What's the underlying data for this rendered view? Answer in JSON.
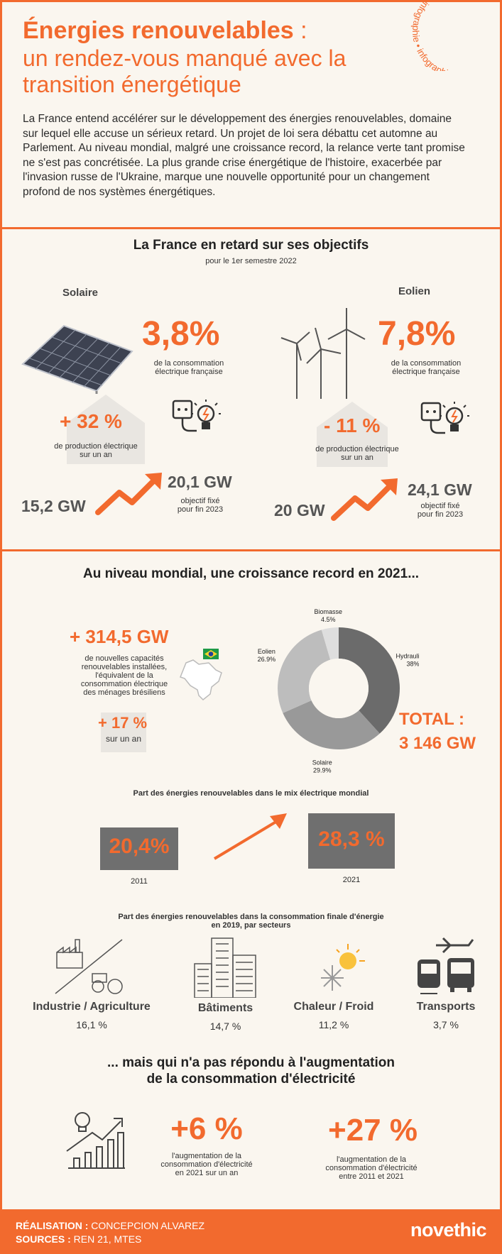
{
  "header": {
    "title_line1": "Énergies renouvelables",
    "title_colon": " :",
    "title_line2": "un rendez-vous manqué avec la",
    "title_line3": "transition énergétique",
    "badge_text": "infographie • infographie •",
    "intro": "La France entend accélérer sur le développement des énergies renouvelables, domaine sur lequel elle accuse un sérieux retard. Un projet de loi sera débattu cet automne au Parlement. Au niveau mondial, malgré une croissance record, la relance verte tant promise ne s'est pas concrétisée. La plus grande crise énergétique de l'histoire, exacerbée par l'invasion russe de l'Ukraine, marque une nouvelle opportunité pour un changement profond de nos systèmes énergétiques."
  },
  "france": {
    "heading": "La France en retard sur ses objectifs",
    "subheading": "pour le 1er semestre 2022",
    "solaire": {
      "label": "Solaire",
      "share": "3,8%",
      "share_note_1": "de la consommation",
      "share_note_2": "électrique française",
      "growth": "+ 32 %",
      "growth_note_1": "de production électrique",
      "growth_note_2": "sur un an",
      "gw_from": "15,2 GW",
      "gw_to": "20,1 GW",
      "target_note_1": "objectif fixé",
      "target_note_2": "pour fin 2023"
    },
    "eolien": {
      "label": "Eolien",
      "share": "7,8%",
      "share_note_1": "de la consommation",
      "share_note_2": "électrique française",
      "growth": "- 11 %",
      "growth_note_1": "de production électrique",
      "growth_note_2": "sur un an",
      "gw_from": "20 GW",
      "gw_to": "24,1 GW",
      "target_note_1": "objectif fixé",
      "target_note_2": "pour fin 2023"
    }
  },
  "world": {
    "heading": "Au niveau mondial, une croissance record en 2021...",
    "capacity": "+ 314,5 GW",
    "capacity_note": [
      "de nouvelles capacités",
      "renouvelables installées,",
      "l'équivalent de la",
      "consommation électrique",
      "des ménages brésiliens"
    ],
    "growth": "+ 17 %",
    "growth_note": "sur un an",
    "total_label": "TOTAL :",
    "total_value": "3 146 GW",
    "mix_heading": "Part des énergies renouvelables dans le mix électrique mondial",
    "mix_2011_value": "20,4%",
    "mix_2011_year": "2011",
    "mix_2021_value": "28,3 %",
    "mix_2021_year": "2021",
    "sector_heading_1": "Part des énergies renouvelables dans la consommation finale d'énergie",
    "sector_heading_2": "en 2019, par secteurs",
    "sectors": [
      {
        "name": "Industrie / Agriculture",
        "value": "16,1 %"
      },
      {
        "name": "Bâtiments",
        "value": "14,7 %"
      },
      {
        "name": "Chaleur / Froid",
        "value": "11,2 %"
      },
      {
        "name": "Transports",
        "value": "3,7 %"
      }
    ]
  },
  "chart_data": {
    "type": "pie",
    "categories": [
      "Hydraulique",
      "Solaire",
      "Eolien",
      "Biomasse"
    ],
    "values": [
      38,
      29.9,
      26.9,
      4.5
    ],
    "labels": [
      "38%",
      "29.9%",
      "26.9%",
      "4.5%"
    ],
    "colors": [
      "#6b6b6b",
      "#999999",
      "#bdbdbd",
      "#dedede"
    ],
    "style": "donut"
  },
  "consumption": {
    "heading_1": "... mais qui n'a pas répondu à l'augmentation",
    "heading_2": "de la consommation d'électricité",
    "stat1_value": "+6 %",
    "stat1_note": [
      "l'augmentation de la",
      "consommation d'électricité",
      "en 2021 sur un an"
    ],
    "stat2_value": "+27 %",
    "stat2_note": [
      "l'augmentation de la",
      "consommation d'électricité",
      "entre 2011 et 2021"
    ]
  },
  "footer": {
    "credit_label": "RÉALISATION :",
    "credit_value": " CONCEPCION ALVAREZ",
    "sources_label": "SOURCES :",
    "sources_value": " REN 21, MTES",
    "logo": "novethic"
  },
  "colors": {
    "accent": "#f26a2e",
    "background": "#faf6ef",
    "dark_grey": "#6f6f6f"
  }
}
